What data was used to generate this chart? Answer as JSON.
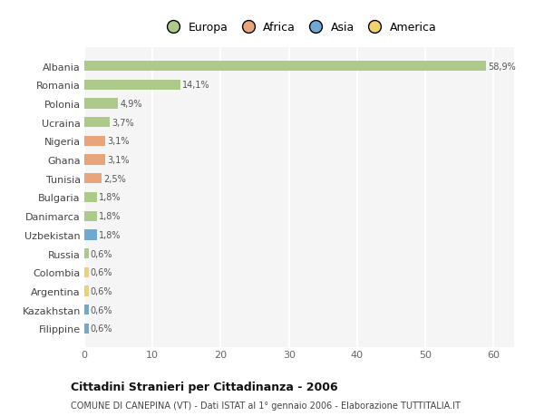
{
  "countries": [
    "Albania",
    "Romania",
    "Polonia",
    "Ucraina",
    "Nigeria",
    "Ghana",
    "Tunisia",
    "Bulgaria",
    "Danimarca",
    "Uzbekistan",
    "Russia",
    "Colombia",
    "Argentina",
    "Kazakhstan",
    "Filippine"
  ],
  "values": [
    58.9,
    14.1,
    4.9,
    3.7,
    3.1,
    3.1,
    2.5,
    1.8,
    1.8,
    1.8,
    0.6,
    0.6,
    0.6,
    0.6,
    0.6
  ],
  "labels": [
    "58,9%",
    "14,1%",
    "4,9%",
    "3,7%",
    "3,1%",
    "3,1%",
    "2,5%",
    "1,8%",
    "1,8%",
    "1,8%",
    "0,6%",
    "0,6%",
    "0,6%",
    "0,6%",
    "0,6%"
  ],
  "continents": [
    "Europa",
    "Europa",
    "Europa",
    "Europa",
    "Africa",
    "Africa",
    "Africa",
    "Europa",
    "Europa",
    "Asia",
    "Europa",
    "America",
    "America",
    "Asia",
    "Asia"
  ],
  "colors": {
    "Europa": "#aeca8a",
    "Africa": "#e8a47a",
    "Asia": "#6fa8d0",
    "America": "#f0d070"
  },
  "title": "Cittadini Stranieri per Cittadinanza - 2006",
  "subtitle": "COMUNE DI CANEPINA (VT) - Dati ISTAT al 1° gennaio 2006 - Elaborazione TUTTITALIA.IT",
  "xlabel_ticks": [
    0,
    10,
    20,
    30,
    40,
    50,
    60
  ],
  "xlim": [
    0,
    63
  ],
  "bg_color": "#ffffff",
  "plot_bg_color": "#f5f5f5",
  "grid_color": "#ffffff"
}
